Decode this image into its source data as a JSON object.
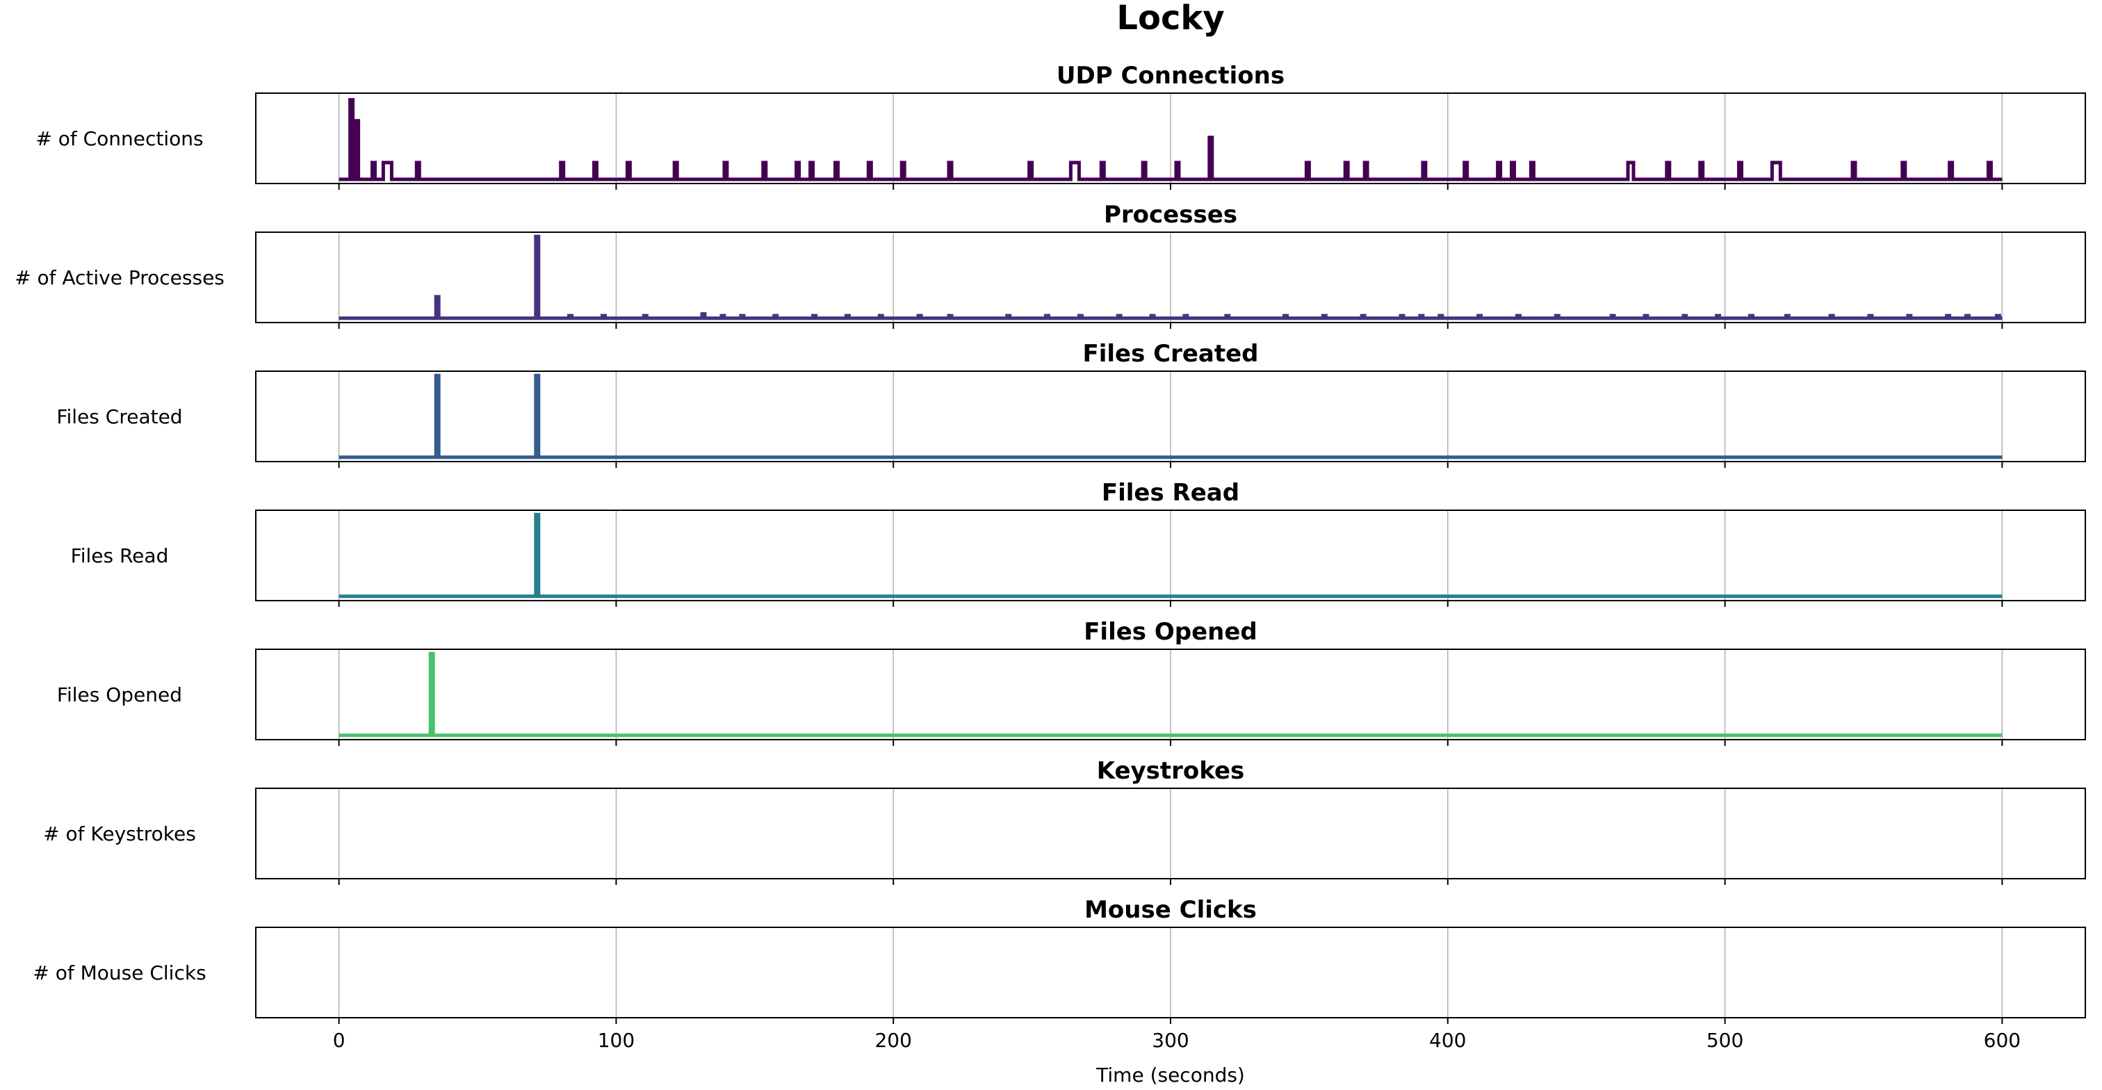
{
  "title": "Locky",
  "xlabel": "Time (seconds)",
  "colors": {
    "udp": "#440154",
    "processes": "#46337e",
    "files_created": "#365c8d",
    "files_read": "#277f8e",
    "files_opened": "#4ac16d",
    "keystrokes": "#a2da37",
    "mouse_clicks": "#fde725",
    "grid": "#b0b0b0",
    "frame": "#000000"
  },
  "chart_data": {
    "type": "line",
    "title": "Locky",
    "xlabel": "Time (seconds)",
    "xlim": [
      -30,
      630
    ],
    "x_ticks": [
      0,
      100,
      200,
      300,
      400,
      500,
      600
    ],
    "grid": true,
    "panels": [
      {
        "key": "udp",
        "title": "UDP Connections",
        "ylabel": "# of Connections",
        "ylim": [
          0,
          1.08
        ],
        "baseline": 0.05,
        "spikes": [
          {
            "x": 4,
            "y": 1.0,
            "w": 1
          },
          {
            "x": 6,
            "y": 0.75,
            "w": 1
          },
          {
            "x": 12,
            "y": 0.25,
            "w": 1
          },
          {
            "x": 16,
            "y": 0.25,
            "w": 3
          },
          {
            "x": 28,
            "y": 0.25,
            "w": 1
          },
          {
            "x": 80,
            "y": 0.25,
            "w": 1
          },
          {
            "x": 92,
            "y": 0.25,
            "w": 1
          },
          {
            "x": 104,
            "y": 0.25,
            "w": 1
          },
          {
            "x": 121,
            "y": 0.25,
            "w": 1
          },
          {
            "x": 139,
            "y": 0.25,
            "w": 1
          },
          {
            "x": 153,
            "y": 0.25,
            "w": 1
          },
          {
            "x": 165,
            "y": 0.25,
            "w": 1
          },
          {
            "x": 170,
            "y": 0.25,
            "w": 1
          },
          {
            "x": 179,
            "y": 0.25,
            "w": 1
          },
          {
            "x": 191,
            "y": 0.25,
            "w": 1
          },
          {
            "x": 203,
            "y": 0.25,
            "w": 1
          },
          {
            "x": 220,
            "y": 0.25,
            "w": 1
          },
          {
            "x": 249,
            "y": 0.25,
            "w": 1
          },
          {
            "x": 264,
            "y": 0.25,
            "w": 3
          },
          {
            "x": 275,
            "y": 0.25,
            "w": 1
          },
          {
            "x": 290,
            "y": 0.25,
            "w": 1
          },
          {
            "x": 302,
            "y": 0.25,
            "w": 1
          },
          {
            "x": 314,
            "y": 0.55,
            "w": 1
          },
          {
            "x": 349,
            "y": 0.25,
            "w": 1
          },
          {
            "x": 363,
            "y": 0.25,
            "w": 1
          },
          {
            "x": 370,
            "y": 0.25,
            "w": 1
          },
          {
            "x": 391,
            "y": 0.25,
            "w": 1
          },
          {
            "x": 406,
            "y": 0.25,
            "w": 1
          },
          {
            "x": 418,
            "y": 0.25,
            "w": 1
          },
          {
            "x": 423,
            "y": 0.25,
            "w": 1
          },
          {
            "x": 430,
            "y": 0.25,
            "w": 1
          },
          {
            "x": 465,
            "y": 0.25,
            "w": 2
          },
          {
            "x": 479,
            "y": 0.25,
            "w": 1
          },
          {
            "x": 491,
            "y": 0.25,
            "w": 1
          },
          {
            "x": 505,
            "y": 0.25,
            "w": 1
          },
          {
            "x": 517,
            "y": 0.25,
            "w": 3
          },
          {
            "x": 546,
            "y": 0.25,
            "w": 1
          },
          {
            "x": 564,
            "y": 0.25,
            "w": 1
          },
          {
            "x": 581,
            "y": 0.25,
            "w": 1
          },
          {
            "x": 595,
            "y": 0.25,
            "w": 1
          }
        ]
      },
      {
        "key": "processes",
        "title": "Processes",
        "ylabel": "# of Active Processes",
        "ylim": [
          0,
          1.05
        ],
        "baseline": 0.05,
        "spikes": [
          {
            "x": 35,
            "y": 0.3,
            "w": 1
          },
          {
            "x": 71,
            "y": 1.0,
            "w": 1
          },
          {
            "x": 83,
            "y": 0.08,
            "w": 1
          },
          {
            "x": 95,
            "y": 0.08,
            "w": 1
          },
          {
            "x": 110,
            "y": 0.08,
            "w": 1
          },
          {
            "x": 131,
            "y": 0.1,
            "w": 1
          },
          {
            "x": 138,
            "y": 0.08,
            "w": 1
          },
          {
            "x": 145,
            "y": 0.08,
            "w": 1
          },
          {
            "x": 157,
            "y": 0.08,
            "w": 1
          },
          {
            "x": 171,
            "y": 0.08,
            "w": 1
          },
          {
            "x": 183,
            "y": 0.08,
            "w": 1
          },
          {
            "x": 195,
            "y": 0.08,
            "w": 1
          },
          {
            "x": 209,
            "y": 0.08,
            "w": 1
          },
          {
            "x": 220,
            "y": 0.08,
            "w": 1
          },
          {
            "x": 241,
            "y": 0.08,
            "w": 1
          },
          {
            "x": 255,
            "y": 0.08,
            "w": 1
          },
          {
            "x": 267,
            "y": 0.08,
            "w": 1
          },
          {
            "x": 281,
            "y": 0.08,
            "w": 1
          },
          {
            "x": 293,
            "y": 0.08,
            "w": 1
          },
          {
            "x": 305,
            "y": 0.08,
            "w": 1
          },
          {
            "x": 320,
            "y": 0.08,
            "w": 1
          },
          {
            "x": 341,
            "y": 0.08,
            "w": 1
          },
          {
            "x": 355,
            "y": 0.08,
            "w": 1
          },
          {
            "x": 369,
            "y": 0.08,
            "w": 1
          },
          {
            "x": 383,
            "y": 0.08,
            "w": 1
          },
          {
            "x": 390,
            "y": 0.08,
            "w": 1
          },
          {
            "x": 397,
            "y": 0.08,
            "w": 1
          },
          {
            "x": 411,
            "y": 0.08,
            "w": 1
          },
          {
            "x": 425,
            "y": 0.08,
            "w": 1
          },
          {
            "x": 439,
            "y": 0.08,
            "w": 1
          },
          {
            "x": 459,
            "y": 0.08,
            "w": 1
          },
          {
            "x": 471,
            "y": 0.08,
            "w": 1
          },
          {
            "x": 485,
            "y": 0.08,
            "w": 1
          },
          {
            "x": 497,
            "y": 0.08,
            "w": 1
          },
          {
            "x": 509,
            "y": 0.08,
            "w": 1
          },
          {
            "x": 522,
            "y": 0.08,
            "w": 1
          },
          {
            "x": 538,
            "y": 0.08,
            "w": 1
          },
          {
            "x": 552,
            "y": 0.08,
            "w": 1
          },
          {
            "x": 566,
            "y": 0.08,
            "w": 1
          },
          {
            "x": 580,
            "y": 0.08,
            "w": 1
          },
          {
            "x": 587,
            "y": 0.08,
            "w": 1
          },
          {
            "x": 598,
            "y": 0.08,
            "w": 1
          }
        ]
      },
      {
        "key": "files_created",
        "title": "Files Created",
        "ylabel": "Files Created",
        "ylim": [
          0,
          1.05
        ],
        "baseline": 0.05,
        "spikes": [
          {
            "x": 35,
            "y": 1.0,
            "w": 1
          },
          {
            "x": 71,
            "y": 1.0,
            "w": 1
          }
        ]
      },
      {
        "key": "files_read",
        "title": "Files Read",
        "ylabel": "Files Read",
        "ylim": [
          0,
          1.05
        ],
        "baseline": 0.05,
        "spikes": [
          {
            "x": 71,
            "y": 1.0,
            "w": 1
          }
        ]
      },
      {
        "key": "files_opened",
        "title": "Files Opened",
        "ylabel": "Files Opened",
        "ylim": [
          0,
          1.05
        ],
        "baseline": 0.05,
        "spikes": [
          {
            "x": 33,
            "y": 1.0,
            "w": 1
          }
        ]
      },
      {
        "key": "keystrokes",
        "title": "Keystrokes",
        "ylabel": "# of Keystrokes",
        "ylim": [
          0,
          1.05
        ],
        "baseline": null,
        "spikes": []
      },
      {
        "key": "mouse_clicks",
        "title": "Mouse Clicks",
        "ylabel": "# of Mouse Clicks",
        "ylim": [
          0,
          1.05
        ],
        "baseline": null,
        "spikes": []
      }
    ]
  }
}
